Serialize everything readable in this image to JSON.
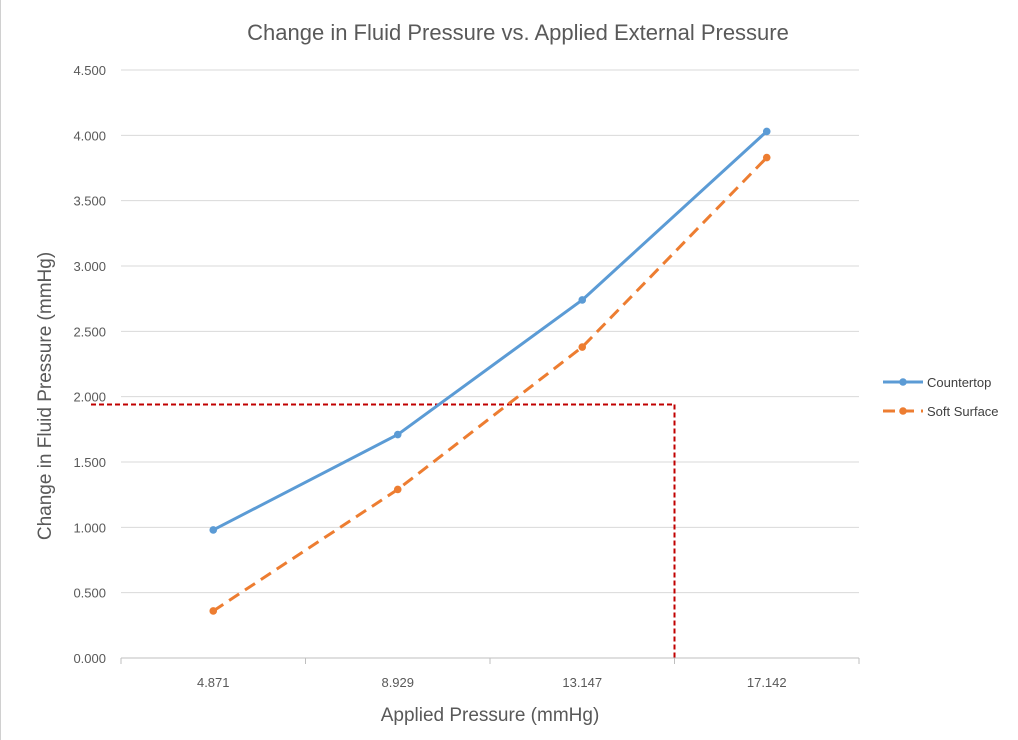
{
  "chart_data": {
    "type": "line",
    "title": "Change in Fluid Pressure vs. Applied External Pressure",
    "xlabel": "Applied Pressure (mmHg)",
    "ylabel": "Change in Fluid Pressure (mmHg)",
    "categories": [
      "4.871",
      "8.929",
      "13.147",
      "17.142"
    ],
    "ylim": [
      0,
      4.5
    ],
    "yticks": [
      "0.000",
      "0.500",
      "1.000",
      "1.500",
      "2.000",
      "2.500",
      "3.000",
      "3.500",
      "4.000",
      "4.500"
    ],
    "grid": true,
    "legend_position": "right",
    "series": [
      {
        "name": "Countertop",
        "values": [
          0.98,
          1.71,
          2.74,
          4.03
        ],
        "color": "#5b9bd5",
        "style": "solid",
        "marker": "circle"
      },
      {
        "name": "Soft Surface",
        "values": [
          0.36,
          1.29,
          2.38,
          3.83
        ],
        "color": "#ed7d31",
        "style": "dashed",
        "marker": "circle"
      }
    ],
    "annotation": {
      "type": "crosshair",
      "color": "#c00000",
      "style": "dashed",
      "x_category_position": 2.5,
      "y": 1.94
    }
  }
}
